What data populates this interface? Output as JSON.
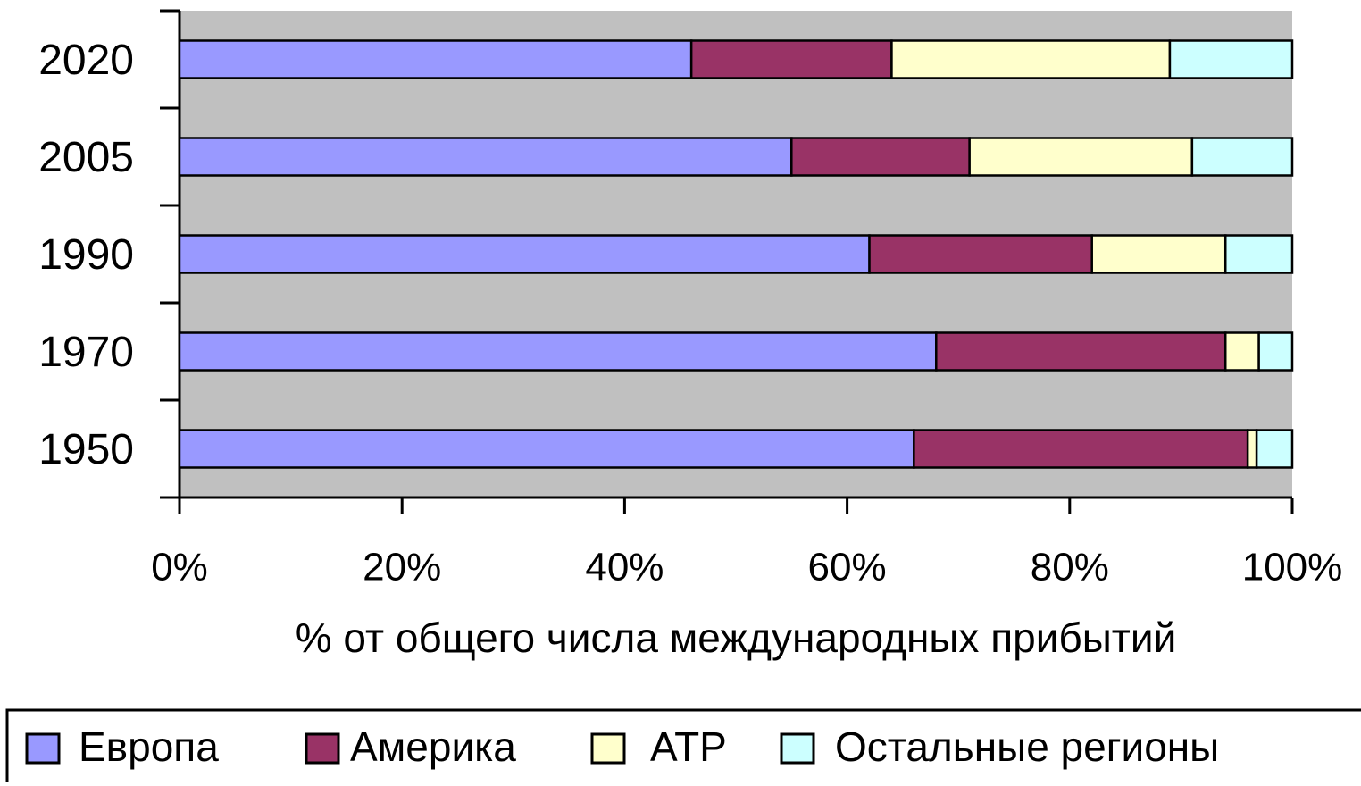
{
  "chart_data": {
    "type": "stacked-bar-horizontal",
    "x_label": "% от общего числа международных прибытий",
    "categories": [
      "2020",
      "2005",
      "1990",
      "1970",
      "1950"
    ],
    "series": [
      {
        "name": "Европа",
        "color": "#9999ff",
        "values": [
          46,
          55,
          62,
          68,
          66
        ]
      },
      {
        "name": "Америка",
        "color": "#993366",
        "values": [
          18,
          16,
          20,
          26,
          30
        ]
      },
      {
        "name": "АТР",
        "color": "#ffffcc",
        "values": [
          25,
          20,
          12,
          3,
          0.8
        ]
      },
      {
        "name": "Остальные регионы",
        "color": "#ccffff",
        "values": [
          11,
          9,
          6,
          3,
          3.2
        ]
      }
    ],
    "xlim": [
      0,
      100
    ],
    "xticks": [
      {
        "value": 0,
        "label": "0%"
      },
      {
        "value": 20,
        "label": "20%"
      },
      {
        "value": 40,
        "label": "40%"
      },
      {
        "value": 60,
        "label": "60%"
      },
      {
        "value": 80,
        "label": "80%"
      },
      {
        "value": 100,
        "label": "100%"
      }
    ],
    "plot_background": "#c0c0c0",
    "legend": "bottom"
  }
}
